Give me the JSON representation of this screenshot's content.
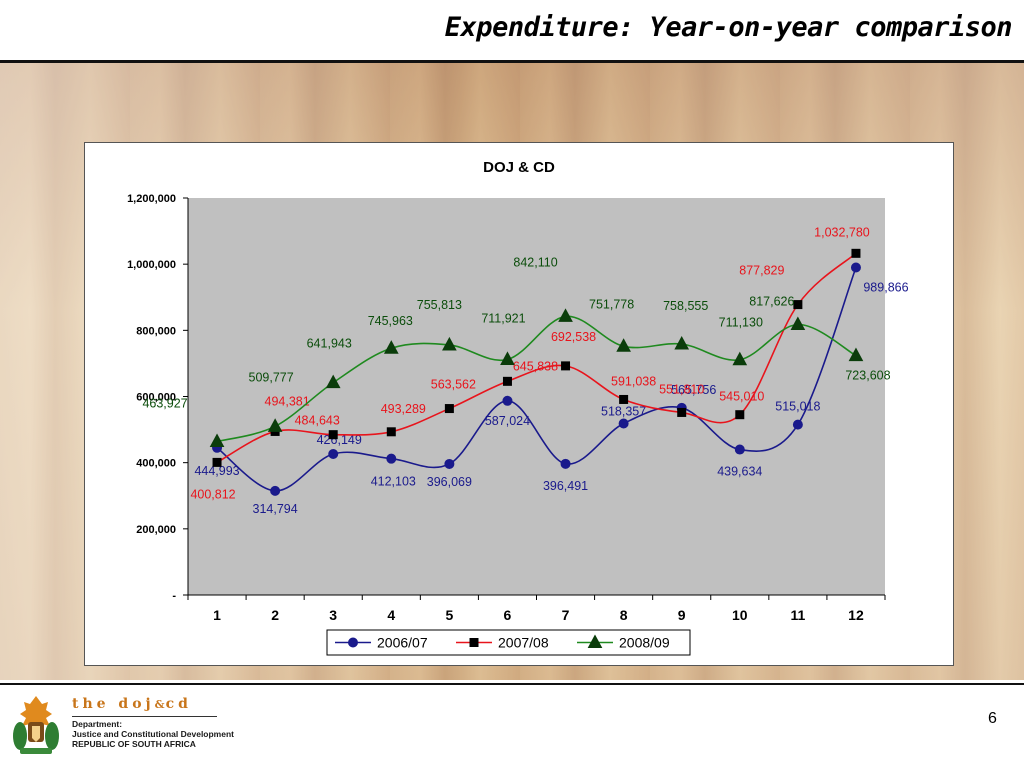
{
  "slide": {
    "title": "Expenditure:  Year-on-year comparison",
    "page_number": "6"
  },
  "footer": {
    "brand_parts": [
      "the doj",
      "&",
      "cd"
    ],
    "dept_lines": [
      "Department:",
      "Justice and Constitutional Development",
      "REPUBLIC OF SOUTH AFRICA"
    ],
    "logo_icon": "coat-of-arms-icon"
  },
  "chart_data": {
    "type": "line",
    "title": "DOJ & CD",
    "xlabel": "",
    "ylabel": "",
    "ylim": [
      0,
      1200000
    ],
    "yticks": [
      0,
      200000,
      400000,
      600000,
      800000,
      1000000,
      1200000
    ],
    "ytick_labels": [
      "-",
      "200,000",
      "400,000",
      "600,000",
      "800,000",
      "1,000,000",
      "1,200,000"
    ],
    "categories": [
      "1",
      "2",
      "3",
      "4",
      "5",
      "6",
      "7",
      "8",
      "9",
      "10",
      "11",
      "12"
    ],
    "plot_background": "#c0c0c0",
    "grid": false,
    "legend_position": "bottom",
    "series": [
      {
        "name": "2006/07",
        "color": "#1a1a8c",
        "label_color": "#1a1a8c",
        "marker": "circle",
        "values": [
          444993,
          314794,
          426149,
          412103,
          396069,
          587024,
          396491,
          518357,
          565756,
          439634,
          515018,
          989866
        ],
        "labels": [
          "444,993",
          "314,794",
          "426,149",
          "412,103",
          "396,069",
          "587,024",
          "396,491",
          "518,357",
          "565,756",
          "439,634",
          "515,018",
          "989,866"
        ]
      },
      {
        "name": "2007/08",
        "color": "#e8141c",
        "label_color": "#e8141c",
        "marker": "square",
        "values": [
          400812,
          494381,
          484643,
          493289,
          563562,
          645838,
          692538,
          591038,
          551810,
          545010,
          877829,
          1032780
        ],
        "labels": [
          "400,812",
          "494,381",
          "484,643",
          "493,289",
          "563,562",
          "645,838",
          "692,538",
          "591,038",
          "551,810",
          "545,010",
          "877,829",
          "1,032,780"
        ]
      },
      {
        "name": "2008/09",
        "color": "#1f8a1f",
        "label_color": "#0b4d0b",
        "marker": "triangle",
        "values": [
          463927,
          509777,
          641943,
          745963,
          755813,
          711921,
          842110,
          751778,
          758555,
          711130,
          817626,
          723608
        ],
        "labels": [
          "463,927",
          "509,777",
          "641,943",
          "745,963",
          "755,813",
          "711,921",
          "842,110",
          "751,778",
          "758,555",
          "711,130",
          "817,626",
          "723,608"
        ]
      }
    ]
  }
}
